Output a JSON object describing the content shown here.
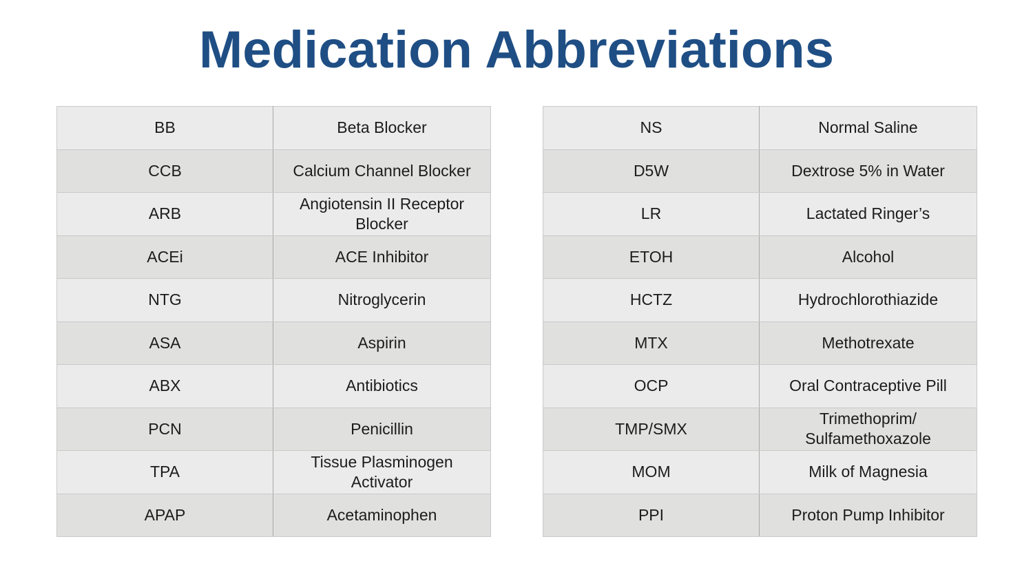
{
  "title": "Medication Abbreviations",
  "tables": {
    "left": {
      "rows": [
        {
          "abbr": "BB",
          "meaning": "Beta Blocker"
        },
        {
          "abbr": "CCB",
          "meaning": "Calcium Channel Blocker"
        },
        {
          "abbr": "ARB",
          "meaning": "Angiotensin II Receptor Blocker"
        },
        {
          "abbr": "ACEi",
          "meaning": "ACE Inhibitor"
        },
        {
          "abbr": "NTG",
          "meaning": "Nitroglycerin"
        },
        {
          "abbr": "ASA",
          "meaning": "Aspirin"
        },
        {
          "abbr": "ABX",
          "meaning": "Antibiotics"
        },
        {
          "abbr": "PCN",
          "meaning": "Penicillin"
        },
        {
          "abbr": "TPA",
          "meaning": "Tissue Plasminogen Activator"
        },
        {
          "abbr": "APAP",
          "meaning": "Acetaminophen"
        }
      ]
    },
    "right": {
      "rows": [
        {
          "abbr": "NS",
          "meaning": "Normal Saline"
        },
        {
          "abbr": "D5W",
          "meaning": "Dextrose 5% in Water"
        },
        {
          "abbr": "LR",
          "meaning": "Lactated Ringer’s"
        },
        {
          "abbr": "ETOH",
          "meaning": "Alcohol"
        },
        {
          "abbr": "HCTZ",
          "meaning": "Hydrochlorothiazide"
        },
        {
          "abbr": "MTX",
          "meaning": "Methotrexate"
        },
        {
          "abbr": "OCP",
          "meaning": "Oral Contraceptive Pill"
        },
        {
          "abbr": "TMP/SMX",
          "meaning": "Trimethoprim/ Sulfamethoxazole"
        },
        {
          "abbr": "MOM",
          "meaning": "Milk of Magnesia"
        },
        {
          "abbr": "PPI",
          "meaning": "Proton Pump Inhibitor"
        }
      ]
    }
  },
  "colors": {
    "title": "#1f4e84",
    "row_light": "#ebebeb",
    "row_dark": "#e0e0df",
    "text": "#1c1c1c"
  }
}
